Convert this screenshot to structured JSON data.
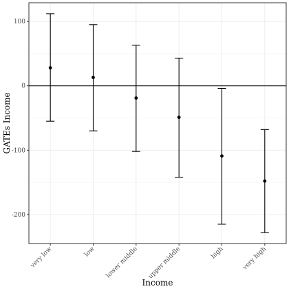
{
  "chart_data": {
    "type": "scatter",
    "subtype": "point-with-errorbars",
    "title": "",
    "xlabel": "Income",
    "ylabel": "GATEs Income",
    "categories": [
      "very low",
      "low",
      "lower middle",
      "upper middle",
      "high",
      "very high"
    ],
    "points": [
      {
        "x": "very low",
        "y": 28,
        "lower": -55,
        "upper": 112
      },
      {
        "x": "low",
        "y": 13,
        "lower": -70,
        "upper": 95
      },
      {
        "x": "lower middle",
        "y": -19,
        "lower": -102,
        "upper": 63
      },
      {
        "x": "upper middle",
        "y": -49,
        "lower": -142,
        "upper": 43
      },
      {
        "x": "high",
        "y": -109,
        "lower": -215,
        "upper": -4
      },
      {
        "x": "very high",
        "y": -148,
        "lower": -228,
        "upper": -68
      }
    ],
    "ylim": [
      -245,
      129
    ],
    "yticks": [
      100,
      0,
      -100,
      -200
    ],
    "ytick_labels": [
      "100",
      "0",
      "-100",
      "-200"
    ],
    "reference_line_y": 0,
    "grid": true,
    "legend": "none",
    "colors": {
      "points": "#000000",
      "errorbars": "#000000",
      "reference_line": "#000000",
      "grid": "#ebebeb",
      "panel_border": "#333333",
      "tick_text": "#4d4d4d"
    }
  }
}
